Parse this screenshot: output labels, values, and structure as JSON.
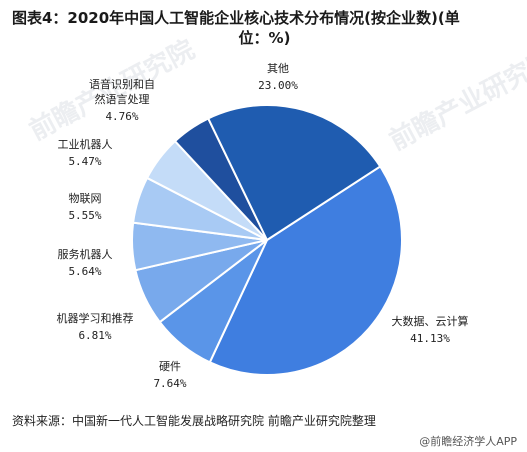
{
  "title_line1": "图表4：2020年中国人工智能企业核心技术分布情况(按企业数)(单",
  "title_line2": "位：%)",
  "source": "资料来源：中国新一代人工智能发展战略研究院 前瞻产业研究院整理",
  "brand": "@前瞻经济学人APP",
  "watermark": "前瞻产业研究院",
  "chart_data": {
    "type": "pie",
    "title": "图表4：2020年中国人工智能企业核心技术分布情况(按企业数)(单位：%)",
    "slices": [
      {
        "name": "大数据、云计算",
        "value": 41.13,
        "pct_label": "41.13%",
        "color": "#3f7ee0"
      },
      {
        "name": "硬件",
        "value": 7.64,
        "pct_label": "7.64%",
        "color": "#5a95e8"
      },
      {
        "name": "机器学习和推荐",
        "value": 6.81,
        "pct_label": "6.81%",
        "color": "#78a9ec"
      },
      {
        "name": "服务机器人",
        "value": 5.64,
        "pct_label": "5.64%",
        "color": "#8fb9f0"
      },
      {
        "name": "物联网",
        "value": 5.55,
        "pct_label": "5.55%",
        "color": "#a8caf4"
      },
      {
        "name": "工业机器人",
        "value": 5.47,
        "pct_label": "5.47%",
        "color": "#c4dcf8"
      },
      {
        "name": "语音识别和自然语言处理",
        "value": 4.76,
        "pct_label": "4.76%",
        "color": "#1f4f9e"
      },
      {
        "name": "其他",
        "value": 23.0,
        "pct_label": "23.00%",
        "color": "#1f5cb0"
      }
    ]
  }
}
